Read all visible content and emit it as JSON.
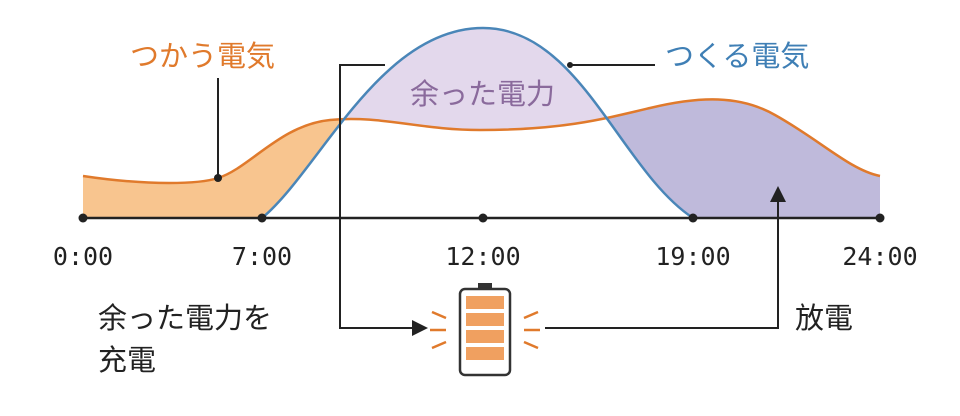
{
  "labels": {
    "consumption": "つかう電気",
    "generation": "つくる電気",
    "surplus": "余った電力",
    "charge": [
      "余った電力を",
      "充電"
    ],
    "discharge": "放電"
  },
  "axis": {
    "ticks": [
      "0:00",
      "7:00",
      "12:00",
      "19:00",
      "24:00"
    ]
  }
}
